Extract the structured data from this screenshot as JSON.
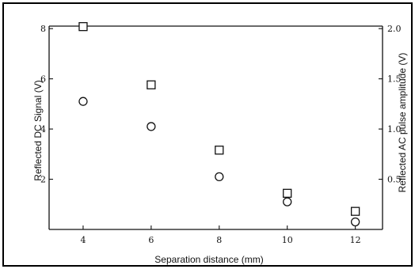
{
  "chart_data": {
    "type": "scatter",
    "xlabel": "Separation distance (mm)",
    "ylabel": "Reflected DC Signal (V)",
    "y2label": "Reflected AC pulse amplitude (V)",
    "xlim": [
      3,
      12.8
    ],
    "ylim": [
      0,
      8.1
    ],
    "y2lim": [
      0,
      2.025
    ],
    "x_ticks": [
      "4",
      "6",
      "8",
      "10",
      "12"
    ],
    "y_ticks": [
      "2",
      "4",
      "6",
      "8"
    ],
    "y2_ticks": [
      "0.5",
      "1.0",
      "1.5",
      "2.0"
    ],
    "series": [
      {
        "axis": "left",
        "marker": "circle",
        "x": [
          4,
          6,
          8,
          10,
          12
        ],
        "y": [
          5.1,
          4.1,
          2.1,
          1.1,
          0.3
        ]
      },
      {
        "axis": "right",
        "marker": "square",
        "x": [
          4,
          6,
          8,
          10,
          12
        ],
        "y": [
          2.02,
          1.44,
          0.79,
          0.36,
          0.18
        ]
      }
    ]
  }
}
